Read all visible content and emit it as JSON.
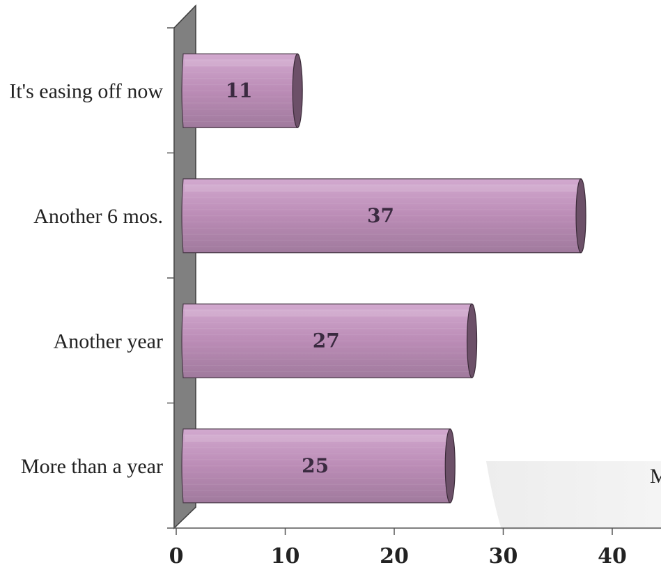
{
  "chart_data": {
    "type": "bar",
    "orientation": "horizontal",
    "categories": [
      "It's easing off now",
      "Another 6 mos.",
      "Another year",
      "More than a year"
    ],
    "series": [
      {
        "values": [
          11,
          37,
          27,
          25
        ]
      }
    ],
    "xlim": [
      0,
      40
    ],
    "x_ticks": [
      "0",
      "10",
      "20",
      "30",
      "40"
    ],
    "data_labels": [
      "11",
      "37",
      "27",
      "25"
    ],
    "legend_fragment": "M",
    "grid": false,
    "colors": {
      "bar": "#b98bb3",
      "bar_top": "#cfa5cb",
      "bar_end": "#6c5068",
      "wall": "#7f7f7f"
    }
  }
}
